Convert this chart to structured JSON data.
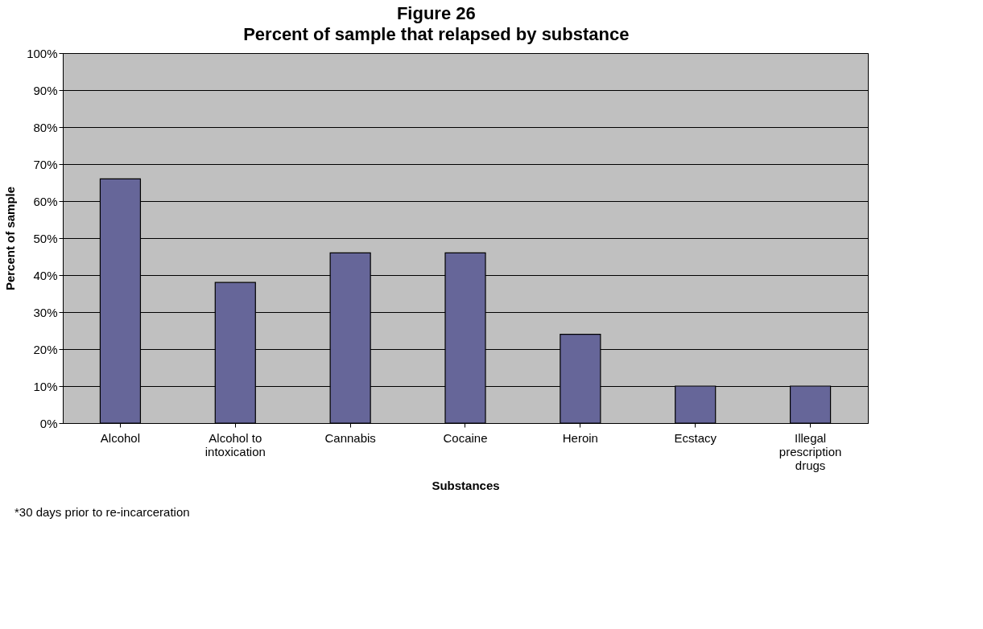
{
  "chart_data": {
    "type": "bar",
    "title": "Figure 26",
    "subtitle": "Percent of sample that relapsed by substance",
    "xlabel": "Substances",
    "ylabel": "Percent of sample",
    "categories": [
      "Alcohol",
      "Alcohol to intoxication",
      "Cannabis",
      "Cocaine",
      "Heroin",
      "Ecstacy",
      "Illegal prescription drugs"
    ],
    "values": [
      66,
      38,
      46,
      46,
      24,
      10,
      10
    ],
    "color": "#666699",
    "ylim": [
      0,
      100
    ],
    "yticks": [
      {
        "value": 0,
        "label": "0%"
      },
      {
        "value": 10,
        "label": "10%"
      },
      {
        "value": 20,
        "label": "20%"
      },
      {
        "value": 30,
        "label": "30%"
      },
      {
        "value": 40,
        "label": "40%"
      },
      {
        "value": 50,
        "label": "50%"
      },
      {
        "value": 60,
        "label": "60%"
      },
      {
        "value": 70,
        "label": "70%"
      },
      {
        "value": 80,
        "label": "80%"
      },
      {
        "value": 90,
        "label": "90%"
      },
      {
        "value": 100,
        "label": "100%"
      }
    ],
    "grid": "y",
    "annotations": [
      "*30 days prior to re-incarceration"
    ]
  }
}
